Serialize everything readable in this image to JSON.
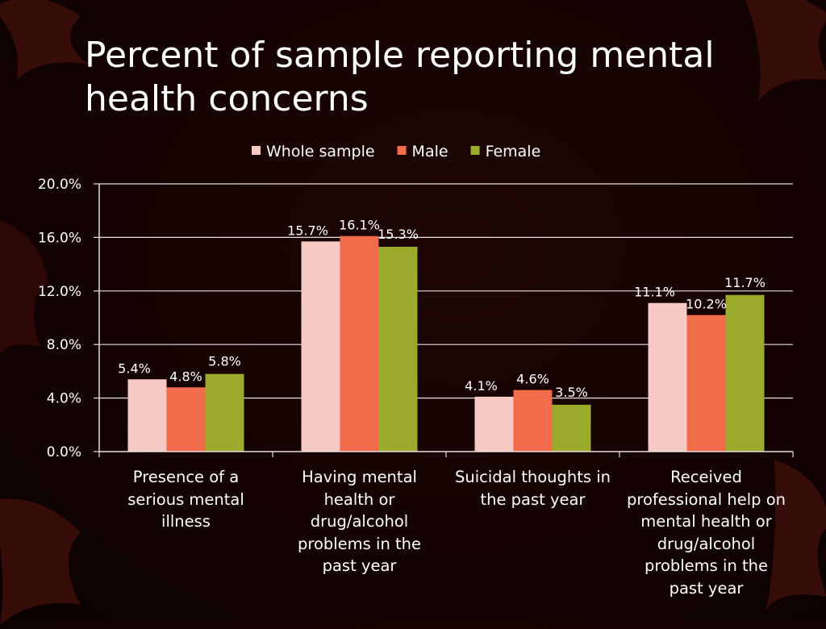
{
  "slide": {
    "title": "Percent of sample reporting mental health concerns",
    "background_color": "#140302"
  },
  "chart_data": {
    "type": "bar",
    "categories": [
      "Presence of a serious mental illness",
      "Having mental health or drug/alcohol problems in the past year",
      "Suicidal thoughts in the past year",
      "Received professional help on mental health or drug/alcohol problems in the past year"
    ],
    "series": [
      {
        "name": "Whole sample",
        "color": "#f6c9c4",
        "values": [
          5.4,
          15.7,
          4.1,
          11.1
        ],
        "labels": [
          "5.4%",
          "15.7%",
          "4.1%",
          "11.1%"
        ]
      },
      {
        "name": "Male",
        "color": "#f26b4a",
        "values": [
          4.8,
          16.1,
          4.6,
          10.2
        ],
        "labels": [
          "4.8%",
          "16.1%",
          "4.6%",
          "10.2%"
        ]
      },
      {
        "name": "Female",
        "color": "#9aab2c",
        "values": [
          5.8,
          15.3,
          3.5,
          11.7
        ],
        "labels": [
          "5.8%",
          "15.3%",
          "3.5%",
          "11.7%"
        ]
      }
    ],
    "ylim": [
      0,
      20
    ],
    "yticks": [
      0,
      4,
      8,
      12,
      16,
      20
    ],
    "ytick_labels": [
      "0.0%",
      "4.0%",
      "8.0%",
      "12.0%",
      "16.0%",
      "20.0%"
    ],
    "xlabel": "",
    "ylabel": "",
    "grid": true,
    "legend_position": "top-center"
  }
}
